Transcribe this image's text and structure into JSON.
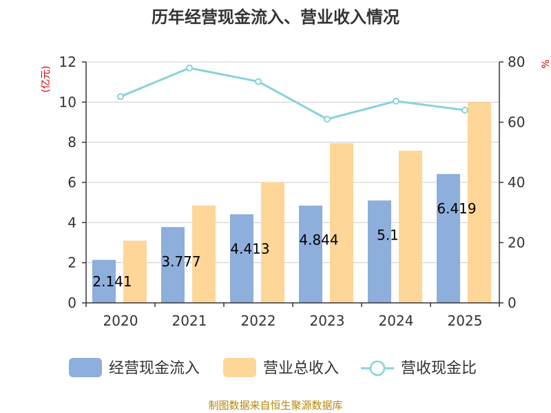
{
  "chart_data": {
    "type": "bar",
    "title": "历年经营现金流入、营业收入情况",
    "ylabel_left": "(亿元)",
    "ylabel_right": "%",
    "categories": [
      "2020",
      "2021",
      "2022",
      "2023",
      "2024",
      "2025"
    ],
    "ylim_left": [
      0,
      12
    ],
    "yticks_left": [
      "0",
      "2",
      "4",
      "6",
      "8",
      "10",
      "12"
    ],
    "ylim_right": [
      0,
      80
    ],
    "yticks_right": [
      "0",
      "20",
      "40",
      "60",
      "80"
    ],
    "grid": true,
    "legend_position": "bottom",
    "series": [
      {
        "name": "经营现金流入",
        "kind": "bar",
        "axis": "left",
        "color": "#8eaedb",
        "values": [
          2.141,
          3.777,
          4.413,
          4.844,
          5.1,
          6.419
        ],
        "labels": [
          "2.141",
          "3.777",
          "4.413",
          "4.844",
          "5.1",
          "6.419"
        ]
      },
      {
        "name": "营业总收入",
        "kind": "bar",
        "axis": "left",
        "color": "#fdd698",
        "values": [
          3.1,
          4.85,
          6.02,
          7.95,
          7.58,
          10.0
        ]
      },
      {
        "name": "营收现金比",
        "kind": "line",
        "axis": "right",
        "color": "#88d2d8",
        "values": [
          68.5,
          78.0,
          73.5,
          61.0,
          67.0,
          64.0
        ]
      }
    ],
    "source": "制图数据来自恒生聚源数据库"
  }
}
